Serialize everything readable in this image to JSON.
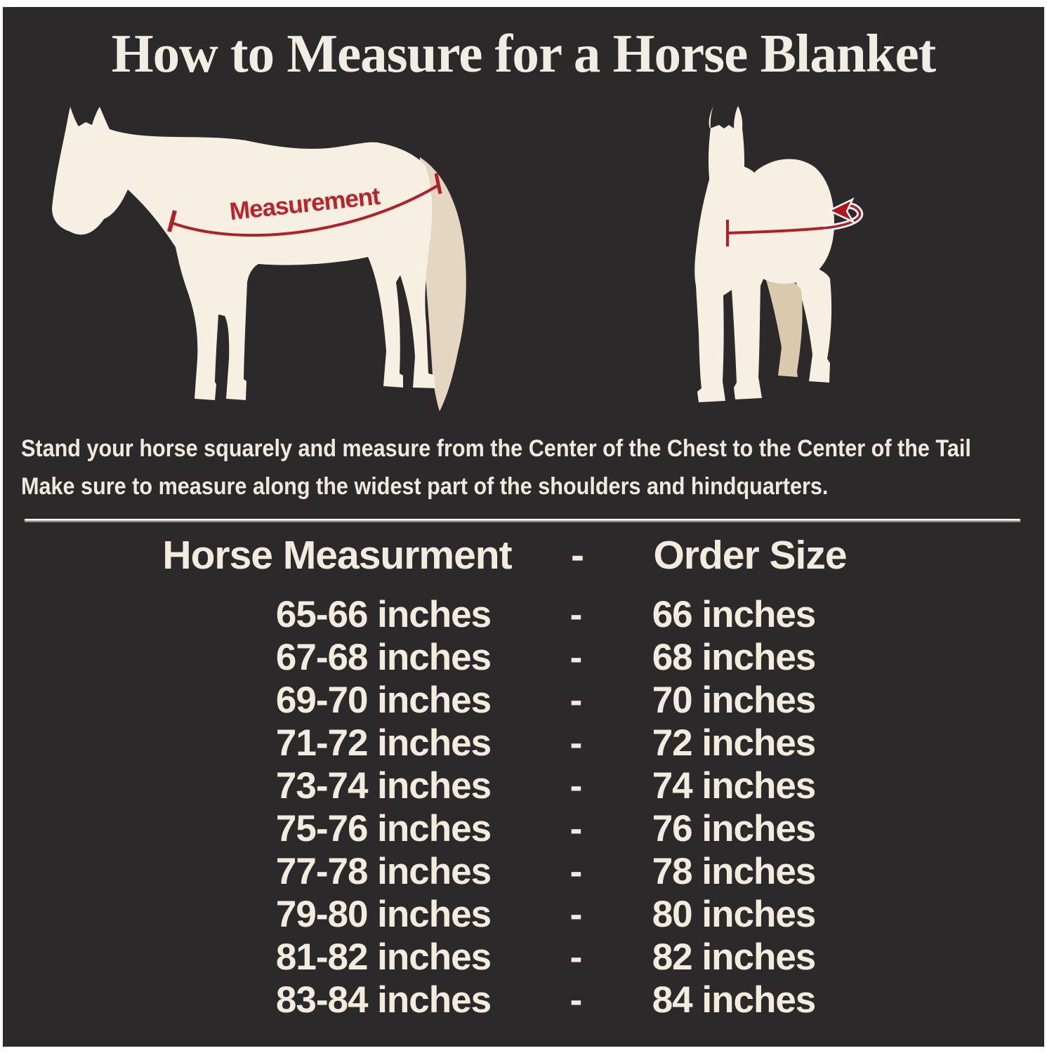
{
  "header": {
    "title": "How to Measure for a Horse Blanket"
  },
  "figures": {
    "side_horse": {
      "label": "Measurement"
    },
    "front_horse": {}
  },
  "instructions": {
    "line1": "Stand your horse squarely and measure from the Center of the Chest to the Center of the Tail",
    "line2": "Make sure to measure along the widest part of the shoulders and hindquarters."
  },
  "size_table": {
    "col_measurement": "Horse Measurment",
    "separator": "-",
    "col_order": "Order Size",
    "rows": [
      {
        "measurement": "65-66 inches",
        "order": "66 inches"
      },
      {
        "measurement": "67-68 inches",
        "order": "68 inches"
      },
      {
        "measurement": "69-70 inches",
        "order": "70 inches"
      },
      {
        "measurement": "71-72 inches",
        "order": "72 inches"
      },
      {
        "measurement": "73-74 inches",
        "order": "74 inches"
      },
      {
        "measurement": "75-76 inches",
        "order": "76 inches"
      },
      {
        "measurement": "77-78 inches",
        "order": "78 inches"
      },
      {
        "measurement": "79-80 inches",
        "order": "80 inches"
      },
      {
        "measurement": "81-82 inches",
        "order": "82 inches"
      },
      {
        "measurement": "83-84 inches",
        "order": "84 inches"
      }
    ]
  },
  "colors": {
    "panel_bg": "#2b2929",
    "text_cream": "#f2ecdf",
    "accent_red": "#b22025",
    "label_red": "#bf2129",
    "horse_body": "#f6f0e2",
    "horse_tail": "#e4d6c1",
    "horse_shade": "#dbc9ae"
  }
}
